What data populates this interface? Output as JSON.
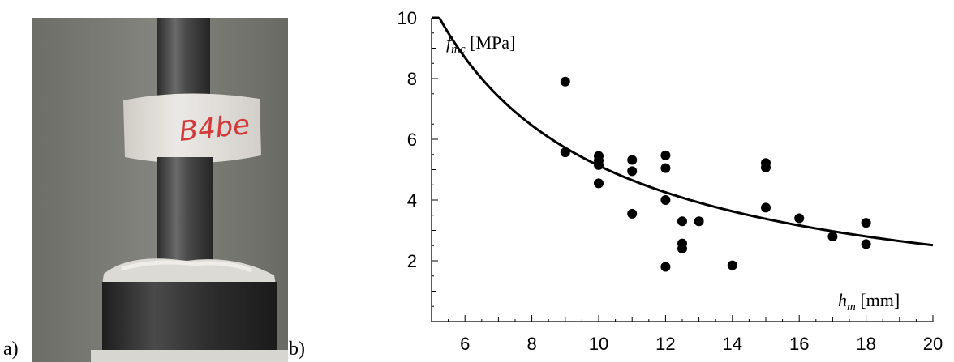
{
  "panels": {
    "a_label": "a)",
    "b_label": "b)"
  },
  "photo": {
    "description_icon": "specimen-in-press-icon",
    "specimen_marking": "B4be",
    "colors": {
      "background": "#77776f",
      "rod": "#3f3f3f",
      "specimen": "#e4e2de",
      "marking": "#d23a3a"
    }
  },
  "chart_data": {
    "type": "scatter",
    "ylabel_main": "f",
    "ylabel_sub": "mc",
    "ylabel_unit": " [MPa]",
    "xlabel_main": "h",
    "xlabel_sub": "m",
    "xlabel_unit": " [mm]",
    "xlim": [
      5,
      20
    ],
    "ylim": [
      0,
      10
    ],
    "xticks": [
      6,
      8,
      10,
      12,
      14,
      16,
      18,
      20
    ],
    "yticks": [
      2,
      4,
      6,
      8,
      10
    ],
    "grid": false,
    "points": [
      [
        9,
        7.9
      ],
      [
        9,
        5.57
      ],
      [
        10,
        5.45
      ],
      [
        10,
        5.3
      ],
      [
        10,
        5.15
      ],
      [
        10,
        4.55
      ],
      [
        11,
        5.32
      ],
      [
        11,
        4.95
      ],
      [
        11,
        3.55
      ],
      [
        12,
        5.47
      ],
      [
        12,
        5.05
      ],
      [
        12,
        4.0
      ],
      [
        12,
        1.8
      ],
      [
        12.5,
        3.3
      ],
      [
        12.5,
        2.57
      ],
      [
        12.5,
        2.4
      ],
      [
        13,
        3.3
      ],
      [
        14,
        1.85
      ],
      [
        15,
        5.22
      ],
      [
        15,
        5.07
      ],
      [
        15,
        3.75
      ],
      [
        16,
        3.4
      ],
      [
        17,
        2.8
      ],
      [
        18,
        3.25
      ],
      [
        18,
        2.55
      ]
    ],
    "fit_curve": {
      "type": "power",
      "a": 55,
      "b": -1.03
    },
    "colors": {
      "marks": "#000000",
      "axis": "#000000"
    }
  }
}
